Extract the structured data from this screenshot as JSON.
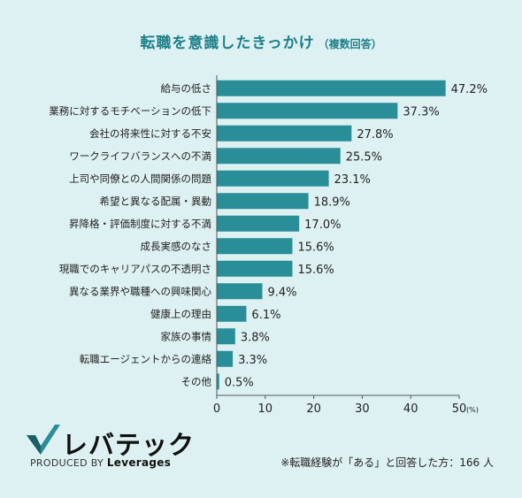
{
  "header": {
    "title": "転職を意識したきっかけ",
    "subtitle": "（複数回答）"
  },
  "chart_data": {
    "type": "bar",
    "orientation": "horizontal",
    "categories": [
      "給与の低さ",
      "業務に対するモチベーションの低下",
      "会社の将来性に対する不安",
      "ワークライフバランスへの不満",
      "上司や同僚との人間関係の問題",
      "希望と異なる配属・異動",
      "昇降格・評価制度に対する不満",
      "成長実感のなさ",
      "現職でのキャリアパスの不透明さ",
      "異なる業界や職種への興味関心",
      "健康上の理由",
      "家族の事情",
      "転職エージェントからの連絡",
      "その他"
    ],
    "values": [
      47.2,
      37.3,
      27.8,
      25.5,
      23.1,
      18.9,
      17.0,
      15.6,
      15.6,
      9.4,
      6.1,
      3.8,
      3.3,
      0.5
    ],
    "value_labels": [
      "47.2%",
      "37.3%",
      "27.8%",
      "25.5%",
      "23.1%",
      "18.9%",
      "17.0%",
      "15.6%",
      "15.6%",
      "9.4%",
      "6.1%",
      "3.8%",
      "3.3%",
      "0.5%"
    ],
    "xlim": [
      0,
      50
    ],
    "xticks": [
      0,
      10,
      20,
      30,
      40,
      50
    ],
    "xtick_labels": [
      "0",
      "10",
      "20",
      "30",
      "40",
      "50"
    ],
    "unit_label": "(%)",
    "bar_color": "#2a8e98",
    "grid": false
  },
  "logo": {
    "brand": "レバテック",
    "produced_by": "PRODUCED BY",
    "company": "Leverages"
  },
  "footnote": "※転職経験が「ある」と回答した方：166 人"
}
